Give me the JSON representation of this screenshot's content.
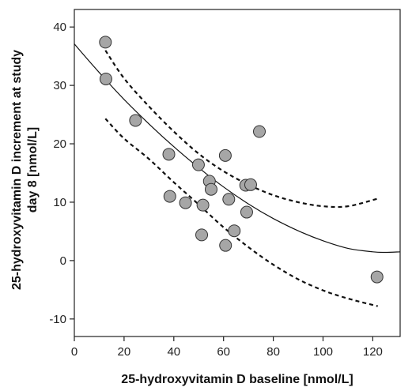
{
  "chart_data": {
    "type": "scatter",
    "title": "",
    "xlabel": "25-hydroxyvitamin D baseline [nmol/L]",
    "ylabel_lines": [
      "25-hydroxyvitamin D increment at study",
      "day 8  [nmol/L]"
    ],
    "xlim": [
      0,
      131
    ],
    "ylim": [
      -13,
      43
    ],
    "x_ticks": [
      0,
      20,
      40,
      60,
      80,
      100,
      120
    ],
    "y_ticks": [
      -10,
      0,
      10,
      20,
      30,
      40
    ],
    "grid": false,
    "legend": "none",
    "point_fill": "#a6a6a6",
    "point_stroke": "#333333",
    "points": [
      {
        "x": 12.5,
        "y": 37.4
      },
      {
        "x": 12.7,
        "y": 31.1
      },
      {
        "x": 24.6,
        "y": 24.0
      },
      {
        "x": 38.0,
        "y": 18.2
      },
      {
        "x": 38.4,
        "y": 11.0
      },
      {
        "x": 44.7,
        "y": 9.9
      },
      {
        "x": 49.9,
        "y": 16.4
      },
      {
        "x": 51.2,
        "y": 4.4
      },
      {
        "x": 51.7,
        "y": 9.5
      },
      {
        "x": 54.3,
        "y": 13.6
      },
      {
        "x": 55.0,
        "y": 12.2
      },
      {
        "x": 60.7,
        "y": 18.0
      },
      {
        "x": 60.8,
        "y": 2.6
      },
      {
        "x": 62.1,
        "y": 10.5
      },
      {
        "x": 64.3,
        "y": 5.1
      },
      {
        "x": 68.9,
        "y": 12.9
      },
      {
        "x": 69.3,
        "y": 8.3
      },
      {
        "x": 70.9,
        "y": 13.0
      },
      {
        "x": 74.4,
        "y": 22.1
      },
      {
        "x": 121.7,
        "y": -2.8
      }
    ],
    "fit_curve": {
      "style": "solid",
      "x_range": [
        0,
        131
      ],
      "points": [
        [
          0,
          37.1
        ],
        [
          10,
          32.2
        ],
        [
          20,
          27.6
        ],
        [
          30,
          23.4
        ],
        [
          40,
          19.5
        ],
        [
          50,
          15.9
        ],
        [
          60,
          12.6
        ],
        [
          70,
          9.7
        ],
        [
          80,
          7.2
        ],
        [
          90,
          5.1
        ],
        [
          100,
          3.4
        ],
        [
          110,
          2.1
        ],
        [
          120,
          1.5
        ],
        [
          125,
          1.4
        ],
        [
          131,
          1.5
        ]
      ]
    },
    "upper_band": {
      "style": "dashed",
      "points": [
        [
          12.5,
          36.0
        ],
        [
          20,
          31.2
        ],
        [
          30,
          26.4
        ],
        [
          40,
          22.1
        ],
        [
          50,
          18.3
        ],
        [
          60,
          15.3
        ],
        [
          70,
          13.0
        ],
        [
          80,
          11.2
        ],
        [
          90,
          10.0
        ],
        [
          100,
          9.3
        ],
        [
          110,
          9.3
        ],
        [
          122,
          10.6
        ]
      ]
    },
    "lower_band": {
      "style": "dashed",
      "points": [
        [
          12.5,
          24.3
        ],
        [
          20,
          20.9
        ],
        [
          30,
          17.4
        ],
        [
          40,
          13.4
        ],
        [
          50,
          9.6
        ],
        [
          60,
          5.7
        ],
        [
          70,
          2.3
        ],
        [
          80,
          -0.7
        ],
        [
          90,
          -3.2
        ],
        [
          100,
          -5.1
        ],
        [
          110,
          -6.5
        ],
        [
          122,
          -7.8
        ]
      ]
    }
  }
}
